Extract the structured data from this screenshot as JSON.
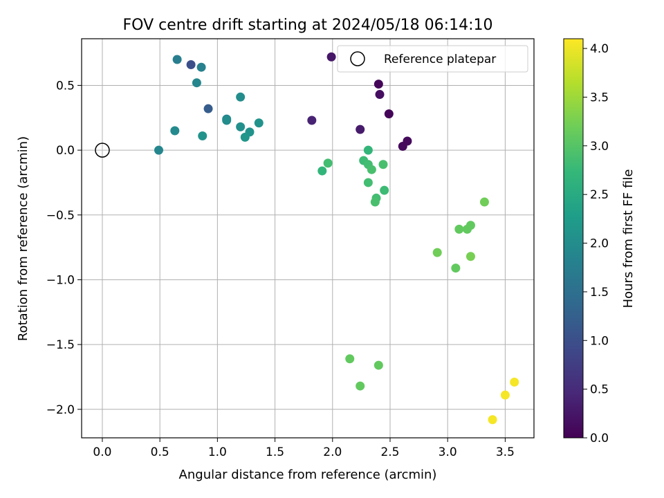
{
  "chart_data": {
    "type": "scatter",
    "title": "FOV centre drift starting at 2024/05/18 06:14:10",
    "xlabel": "Angular distance from reference (arcmin)",
    "ylabel": "Rotation from reference (arcmin)",
    "xlim": [
      -0.18,
      3.75
    ],
    "ylim": [
      -2.22,
      0.86
    ],
    "x_ticks": [
      0.0,
      0.5,
      1.0,
      1.5,
      2.0,
      2.5,
      3.0,
      3.5
    ],
    "x_tick_labels": [
      "0.0",
      "0.5",
      "1.0",
      "1.5",
      "2.0",
      "2.5",
      "3.0",
      "3.5"
    ],
    "y_ticks": [
      0.5,
      0.0,
      -0.5,
      -1.0,
      -1.5,
      -2.0
    ],
    "y_tick_labels": [
      "0.5",
      "0.0",
      "−0.5",
      "−1.0",
      "−1.5",
      "−2.0"
    ],
    "grid": true,
    "legend": {
      "position": "top-right",
      "entries": [
        {
          "label": "Reference platepar",
          "marker": "open-circle"
        }
      ]
    },
    "reference": {
      "x": 0.0,
      "y": 0.0
    },
    "colorbar": {
      "label": "Hours from first FF file",
      "colormap": "viridis",
      "range": [
        0.0,
        4.1
      ],
      "ticks": [
        0.0,
        0.5,
        1.0,
        1.5,
        2.0,
        2.5,
        3.0,
        3.5,
        4.0
      ],
      "tick_labels": [
        "0.0",
        "0.5",
        "1.0",
        "1.5",
        "2.0",
        "2.5",
        "3.0",
        "3.5",
        "4.0"
      ]
    },
    "points": [
      {
        "x": 1.99,
        "y": 0.72,
        "c": 0.25
      },
      {
        "x": 2.4,
        "y": 0.51,
        "c": 0.05
      },
      {
        "x": 2.41,
        "y": 0.43,
        "c": 0.15
      },
      {
        "x": 2.49,
        "y": 0.28,
        "c": 0.05
      },
      {
        "x": 1.82,
        "y": 0.23,
        "c": 0.4
      },
      {
        "x": 2.24,
        "y": 0.16,
        "c": 0.3
      },
      {
        "x": 2.61,
        "y": 0.03,
        "c": 0.1
      },
      {
        "x": 2.65,
        "y": 0.07,
        "c": 0.1
      },
      {
        "x": 0.77,
        "y": 0.66,
        "c": 1.0
      },
      {
        "x": 0.65,
        "y": 0.7,
        "c": 1.75
      },
      {
        "x": 0.86,
        "y": 0.64,
        "c": 1.8
      },
      {
        "x": 0.82,
        "y": 0.52,
        "c": 1.9
      },
      {
        "x": 0.92,
        "y": 0.32,
        "c": 1.2
      },
      {
        "x": 1.2,
        "y": 0.41,
        "c": 2.0
      },
      {
        "x": 1.08,
        "y": 0.24,
        "c": 1.85
      },
      {
        "x": 1.08,
        "y": 0.23,
        "c": 2.0
      },
      {
        "x": 1.2,
        "y": 0.18,
        "c": 2.05
      },
      {
        "x": 1.36,
        "y": 0.21,
        "c": 2.1
      },
      {
        "x": 1.28,
        "y": 0.14,
        "c": 2.1
      },
      {
        "x": 1.24,
        "y": 0.1,
        "c": 2.15
      },
      {
        "x": 0.63,
        "y": 0.15,
        "c": 1.95
      },
      {
        "x": 0.87,
        "y": 0.11,
        "c": 2.1
      },
      {
        "x": 0.49,
        "y": 0.0,
        "c": 1.9
      },
      {
        "x": 2.31,
        "y": 0.0,
        "c": 2.7
      },
      {
        "x": 2.27,
        "y": -0.08,
        "c": 2.8
      },
      {
        "x": 2.31,
        "y": -0.11,
        "c": 2.85
      },
      {
        "x": 2.34,
        "y": -0.15,
        "c": 2.9
      },
      {
        "x": 2.44,
        "y": -0.11,
        "c": 2.9
      },
      {
        "x": 1.96,
        "y": -0.1,
        "c": 2.85
      },
      {
        "x": 1.91,
        "y": -0.16,
        "c": 2.7
      },
      {
        "x": 2.31,
        "y": -0.25,
        "c": 2.85
      },
      {
        "x": 2.45,
        "y": -0.31,
        "c": 2.8
      },
      {
        "x": 2.38,
        "y": -0.37,
        "c": 2.85
      },
      {
        "x": 2.37,
        "y": -0.4,
        "c": 2.9
      },
      {
        "x": 3.32,
        "y": -0.4,
        "c": 3.2
      },
      {
        "x": 3.1,
        "y": -0.61,
        "c": 3.1
      },
      {
        "x": 3.17,
        "y": -0.61,
        "c": 3.1
      },
      {
        "x": 3.2,
        "y": -0.58,
        "c": 3.1
      },
      {
        "x": 2.91,
        "y": -0.79,
        "c": 3.2
      },
      {
        "x": 3.2,
        "y": -0.82,
        "c": 3.25
      },
      {
        "x": 3.07,
        "y": -0.91,
        "c": 3.1
      },
      {
        "x": 2.15,
        "y": -1.61,
        "c": 3.1
      },
      {
        "x": 2.4,
        "y": -1.66,
        "c": 3.1
      },
      {
        "x": 2.24,
        "y": -1.82,
        "c": 3.1
      },
      {
        "x": 3.58,
        "y": -1.79,
        "c": 4.05
      },
      {
        "x": 3.5,
        "y": -1.89,
        "c": 4.05
      },
      {
        "x": 3.39,
        "y": -2.08,
        "c": 4.05
      }
    ]
  }
}
